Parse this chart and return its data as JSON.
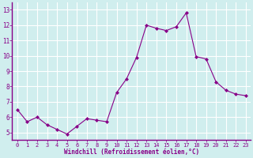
{
  "x": [
    0,
    1,
    2,
    3,
    4,
    5,
    6,
    7,
    8,
    9,
    10,
    11,
    12,
    13,
    14,
    15,
    16,
    17,
    18,
    19,
    20,
    21,
    22,
    23
  ],
  "y": [
    6.5,
    5.7,
    6.0,
    5.5,
    5.2,
    4.9,
    5.4,
    5.9,
    5.8,
    5.7,
    7.6,
    8.5,
    9.9,
    12.0,
    11.8,
    11.65,
    11.9,
    12.8,
    9.95,
    9.8,
    8.3,
    7.75,
    7.5,
    7.4
  ],
  "line_color": "#880088",
  "marker": "D",
  "marker_size": 2,
  "bg_color": "#d0eeee",
  "grid_color": "#ffffff",
  "xlabel": "Windchill (Refroidissement éolien,°C)",
  "xlabel_color": "#880088",
  "tick_color": "#880088",
  "ylim": [
    4.5,
    13.5
  ],
  "xlim": [
    -0.5,
    23.5
  ],
  "yticks": [
    5,
    6,
    7,
    8,
    9,
    10,
    11,
    12,
    13
  ],
  "xticks": [
    0,
    1,
    2,
    3,
    4,
    5,
    6,
    7,
    8,
    9,
    10,
    11,
    12,
    13,
    14,
    15,
    16,
    17,
    18,
    19,
    20,
    21,
    22,
    23
  ],
  "xtick_labels": [
    "0",
    "1",
    "2",
    "3",
    "4",
    "5",
    "6",
    "7",
    "8",
    "9",
    "10",
    "11",
    "12",
    "13",
    "14",
    "15",
    "16",
    "17",
    "18",
    "19",
    "20",
    "21",
    "22",
    "23"
  ],
  "ytick_labels": [
    "5",
    "6",
    "7",
    "8",
    "9",
    "10",
    "11",
    "12",
    "13"
  ]
}
